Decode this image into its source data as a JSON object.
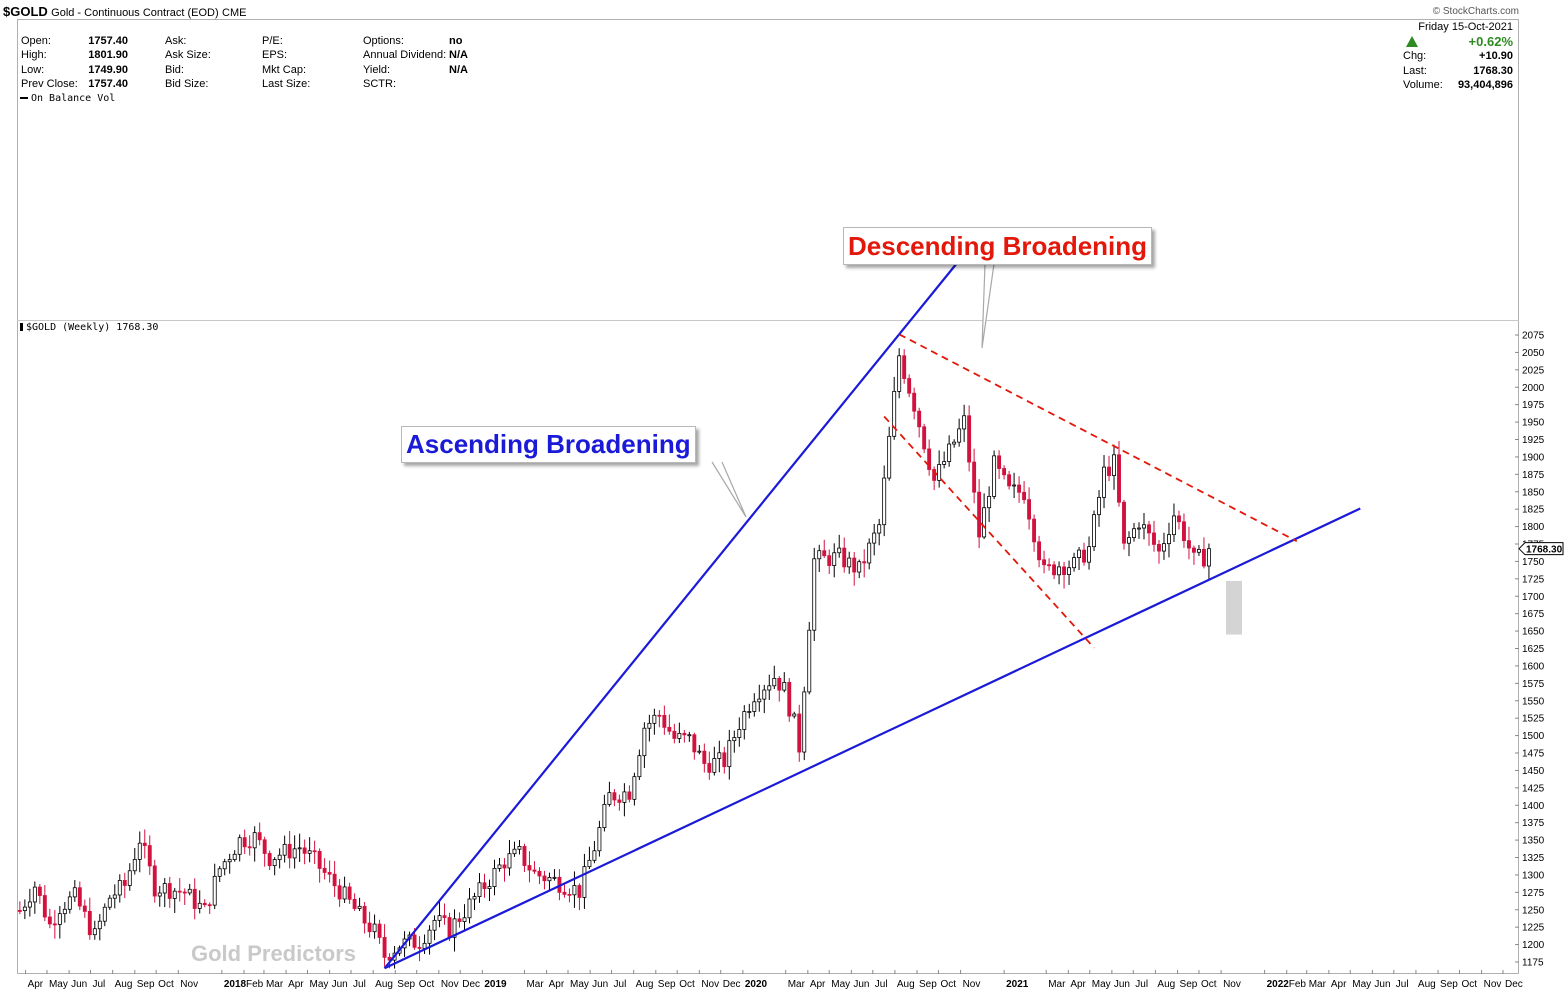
{
  "header": {
    "symbol": "$GOLD",
    "name": "Gold - Continuous Contract (EOD)",
    "exchange": "CME",
    "watermark_site": "© StockCharts.com"
  },
  "quote": {
    "col1": [
      [
        "Open:",
        "1757.40"
      ],
      [
        "High:",
        "1801.90"
      ],
      [
        "Low:",
        "1749.90"
      ],
      [
        "Prev Close:",
        "1757.40"
      ]
    ],
    "col2": [
      [
        "Ask:",
        ""
      ],
      [
        "Ask Size:",
        ""
      ],
      [
        "Bid:",
        ""
      ],
      [
        "Bid Size:",
        ""
      ]
    ],
    "col3": [
      [
        "P/E:",
        ""
      ],
      [
        "EPS:",
        ""
      ],
      [
        "Mkt Cap:",
        ""
      ],
      [
        "Last Size:",
        ""
      ]
    ],
    "col4": [
      [
        "Options:",
        "no"
      ],
      [
        "Annual Dividend:",
        "N/A"
      ],
      [
        "Yield:",
        "N/A"
      ],
      [
        "SCTR:",
        ""
      ]
    ]
  },
  "summary": {
    "date": "Friday  15-Oct-2021",
    "pct_change": "+0.62%",
    "rows": [
      [
        "Chg:",
        "+10.90"
      ],
      [
        "Last:",
        "1768.30"
      ],
      [
        "Volume:",
        "93,404,896"
      ]
    ],
    "trend": "up",
    "up_color": "#2e8b22"
  },
  "indicator_panel": {
    "label": "On Balance Vol"
  },
  "price_panel": {
    "label": "$GOLD (Weekly) 1768.30",
    "last_tag": "1768.30"
  },
  "annotations": {
    "ascending": "Ascending Broadening",
    "descending": "Descending Broadening",
    "watermark": "Gold Predictors",
    "ascending_color": "#1a1ad8",
    "descending_color": "#e3170a"
  },
  "chart_data": {
    "type": "candlestick",
    "title": "$GOLD (Weekly) 1768.30",
    "y_ticks": [
      1175,
      1200,
      1225,
      1250,
      1275,
      1300,
      1325,
      1350,
      1375,
      1400,
      1425,
      1450,
      1475,
      1500,
      1525,
      1550,
      1575,
      1600,
      1625,
      1650,
      1675,
      1700,
      1725,
      1750,
      1775,
      1800,
      1825,
      1850,
      1875,
      1900,
      1925,
      1950,
      1975,
      2000,
      2025,
      2050,
      2075
    ],
    "ylim": [
      1165,
      2085
    ],
    "x_tick_labels": [
      "Apr",
      "May",
      "Jun",
      "Jul",
      "Aug",
      "Sep",
      "Oct",
      "Nov",
      "2018",
      "Feb",
      "Mar",
      "Apr",
      "May",
      "Jun",
      "Jul",
      "Aug",
      "Sep",
      "Oct",
      "Nov",
      "Dec",
      "2019",
      "Mar",
      "Apr",
      "May",
      "Jun",
      "Jul",
      "Aug",
      "Sep",
      "Oct",
      "Nov",
      "Dec",
      "2020",
      "Mar",
      "Apr",
      "May",
      "Jun",
      "Jul",
      "Aug",
      "Sep",
      "Oct",
      "Nov",
      "2021",
      "Mar",
      "Apr",
      "May",
      "Jun",
      "Jul",
      "Aug",
      "Sep",
      "Oct",
      "Nov",
      "2022",
      "Feb",
      "Mar",
      "Apr",
      "May",
      "Jun",
      "Jul",
      "Aug",
      "Sep",
      "Oct",
      "Nov",
      "Dec"
    ],
    "x_tick_dates": [
      "2017-04-01",
      "2017-05-01",
      "2017-06-01",
      "2017-07-01",
      "2017-08-01",
      "2017-09-01",
      "2017-10-01",
      "2017-11-01",
      "2018-01-01",
      "2018-02-01",
      "2018-03-01",
      "2018-04-01",
      "2018-05-01",
      "2018-06-01",
      "2018-07-01",
      "2018-08-01",
      "2018-09-01",
      "2018-10-01",
      "2018-11-01",
      "2018-12-01",
      "2019-01-01",
      "2019-03-01",
      "2019-04-01",
      "2019-05-01",
      "2019-06-01",
      "2019-07-01",
      "2019-08-01",
      "2019-09-01",
      "2019-10-01",
      "2019-11-01",
      "2019-12-01",
      "2020-01-01",
      "2020-03-01",
      "2020-04-01",
      "2020-05-01",
      "2020-06-01",
      "2020-07-01",
      "2020-08-01",
      "2020-09-01",
      "2020-10-01",
      "2020-11-01",
      "2021-01-01",
      "2021-03-01",
      "2021-04-01",
      "2021-05-01",
      "2021-06-01",
      "2021-07-01",
      "2021-08-01",
      "2021-09-01",
      "2021-10-01",
      "2021-11-01",
      "2022-01-01",
      "2022-02-01",
      "2022-03-01",
      "2022-04-01",
      "2022-05-01",
      "2022-06-01",
      "2022-07-01",
      "2022-08-01",
      "2022-09-01",
      "2022-10-01",
      "2022-11-01",
      "2022-12-01"
    ],
    "x_bold_labels": [
      "2018",
      "2019",
      "2020",
      "2021",
      "2022"
    ],
    "close_series": [
      [
        "2017-03-24",
        1249
      ],
      [
        "2017-04-14",
        1285
      ],
      [
        "2017-05-05",
        1228
      ],
      [
        "2017-05-19",
        1255
      ],
      [
        "2017-06-09",
        1268
      ],
      [
        "2017-07-07",
        1212
      ],
      [
        "2017-07-28",
        1268
      ],
      [
        "2017-08-18",
        1285
      ],
      [
        "2017-09-08",
        1352
      ],
      [
        "2017-09-29",
        1283
      ],
      [
        "2017-10-20",
        1280
      ],
      [
        "2017-11-10",
        1275
      ],
      [
        "2017-12-08",
        1248
      ],
      [
        "2017-12-29",
        1309
      ],
      [
        "2018-01-26",
        1350
      ],
      [
        "2018-02-16",
        1354
      ],
      [
        "2018-03-09",
        1325
      ],
      [
        "2018-04-06",
        1335
      ],
      [
        "2018-04-20",
        1340
      ],
      [
        "2018-05-11",
        1320
      ],
      [
        "2018-05-25",
        1302
      ],
      [
        "2018-06-15",
        1278
      ],
      [
        "2018-07-13",
        1242
      ],
      [
        "2018-08-03",
        1218
      ],
      [
        "2018-08-17",
        1184
      ],
      [
        "2018-09-07",
        1200
      ],
      [
        "2018-10-05",
        1205
      ],
      [
        "2018-10-26",
        1235
      ],
      [
        "2018-11-16",
        1222
      ],
      [
        "2018-12-07",
        1248
      ],
      [
        "2019-01-04",
        1285
      ],
      [
        "2019-02-01",
        1320
      ],
      [
        "2019-02-22",
        1330
      ],
      [
        "2019-03-15",
        1302
      ],
      [
        "2019-04-12",
        1292
      ],
      [
        "2019-04-26",
        1286
      ],
      [
        "2019-05-17",
        1277
      ],
      [
        "2019-06-07",
        1340
      ],
      [
        "2019-06-28",
        1413
      ],
      [
        "2019-07-26",
        1420
      ],
      [
        "2019-08-16",
        1513
      ],
      [
        "2019-09-06",
        1530
      ],
      [
        "2019-09-27",
        1496
      ],
      [
        "2019-10-18",
        1494
      ],
      [
        "2019-11-08",
        1460
      ],
      [
        "2019-12-06",
        1463
      ],
      [
        "2019-12-27",
        1518
      ],
      [
        "2020-01-17",
        1560
      ],
      [
        "2020-02-14",
        1585
      ],
      [
        "2020-02-28",
        1566
      ],
      [
        "2020-03-13",
        1517
      ],
      [
        "2020-03-20",
        1484
      ],
      [
        "2020-04-10",
        1752
      ],
      [
        "2020-05-15",
        1756
      ],
      [
        "2020-06-12",
        1737
      ],
      [
        "2020-07-10",
        1801
      ],
      [
        "2020-07-31",
        1986
      ],
      [
        "2020-08-07",
        2046
      ],
      [
        "2020-08-28",
        1975
      ],
      [
        "2020-09-25",
        1866
      ],
      [
        "2020-10-16",
        1907
      ],
      [
        "2020-11-06",
        1951
      ],
      [
        "2020-11-27",
        1788
      ],
      [
        "2020-12-18",
        1888
      ],
      [
        "2021-01-08",
        1850
      ],
      [
        "2021-01-29",
        1850
      ],
      [
        "2021-02-26",
        1734
      ],
      [
        "2021-03-19",
        1745
      ],
      [
        "2021-04-09",
        1745
      ],
      [
        "2021-04-30",
        1769
      ],
      [
        "2021-05-21",
        1878
      ],
      [
        "2021-06-04",
        1891
      ],
      [
        "2021-06-18",
        1769
      ],
      [
        "2021-07-09",
        1808
      ],
      [
        "2021-08-06",
        1763
      ],
      [
        "2021-08-27",
        1818
      ],
      [
        "2021-09-10",
        1789
      ],
      [
        "2021-09-24",
        1751
      ],
      [
        "2021-10-08",
        1757
      ],
      [
        "2021-10-15",
        1768.3
      ]
    ],
    "ascending_lines": [
      [
        [
          "2018-08-17",
          1166
        ],
        [
          "2020-08-07",
          2076
        ]
      ],
      [
        [
          "2018-08-17",
          1166
        ],
        [
          "2022-05-15",
          1826
        ]
      ]
    ],
    "descending_lines": [
      [
        [
          "2020-08-07",
          2076
        ],
        [
          "2022-02-15",
          1779
        ]
      ],
      [
        [
          "2020-07-17",
          1958
        ],
        [
          "2021-05-07",
          1626
        ]
      ]
    ]
  }
}
